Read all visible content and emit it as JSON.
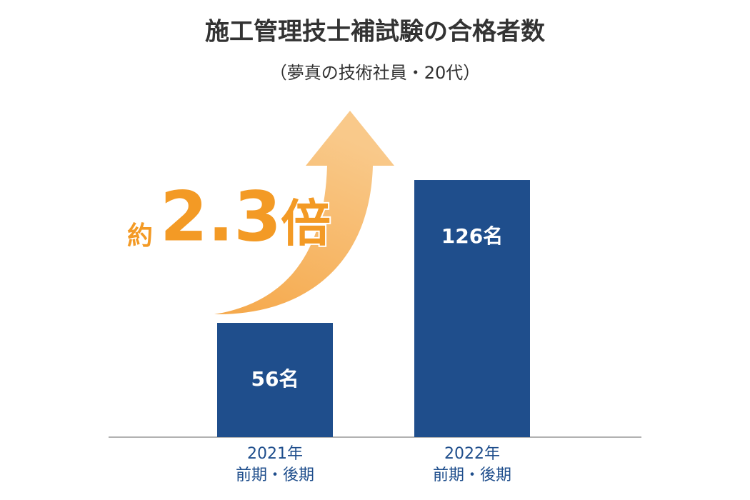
{
  "chart_data": {
    "type": "bar",
    "title": "施工管理技士補試験の合格者数",
    "subtitle": "（夢真の技術社員・20代）",
    "categories": [
      "2021年\n前期・後期",
      "2022年\n前期・後期"
    ],
    "values": [
      56,
      126
    ],
    "value_labels": [
      "56名",
      "126名"
    ],
    "color": "#1f4e8c",
    "annotation": [
      "約",
      "2.3",
      "倍"
    ]
  }
}
